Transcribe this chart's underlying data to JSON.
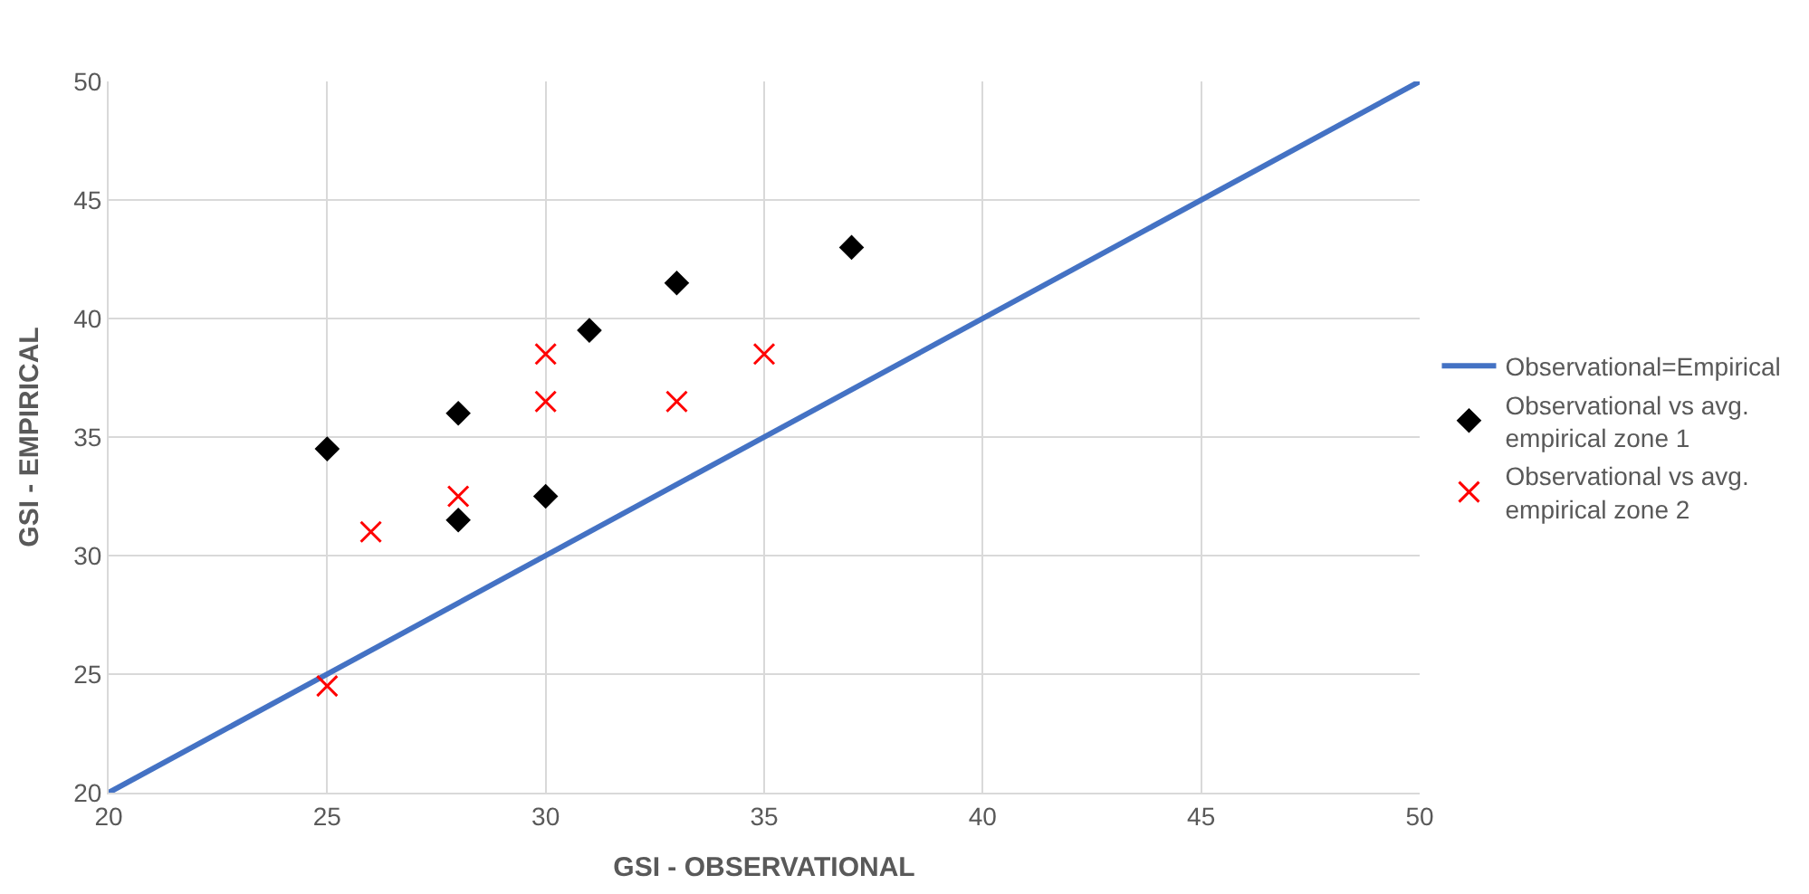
{
  "chart_data": {
    "type": "scatter",
    "xlabel": "GSI - OBSERVATIONAL",
    "ylabel": "GSI - EMPIRICAL",
    "xlim": [
      20,
      50
    ],
    "xticks": [
      20,
      25,
      30,
      35,
      40,
      45,
      50
    ],
    "ylim": [
      20,
      50
    ],
    "yticks": [
      20,
      25,
      30,
      35,
      40,
      45,
      50
    ],
    "grid": true,
    "legend": "right",
    "series": [
      {
        "name": "Observational=Empirical",
        "type": "line",
        "color": "#4472c4",
        "marker": "none",
        "line_style": "solid",
        "x": [
          20,
          50
        ],
        "values": [
          20,
          50
        ]
      },
      {
        "name": "Observational vs avg. empirical zone 1",
        "color": "#000000",
        "marker": "diamond",
        "x": [
          25,
          28,
          28,
          30,
          31,
          33,
          37
        ],
        "values": [
          34.5,
          36,
          31.5,
          32.5,
          39.5,
          41.5,
          43
        ]
      },
      {
        "name": "Observational vs avg. empirical zone 2",
        "color": "#ff0000",
        "marker": "cross",
        "x": [
          25,
          26,
          28,
          30,
          30,
          33,
          35
        ],
        "values": [
          24.5,
          31,
          32.5,
          38.5,
          36.5,
          36.5,
          38.5
        ]
      }
    ]
  }
}
